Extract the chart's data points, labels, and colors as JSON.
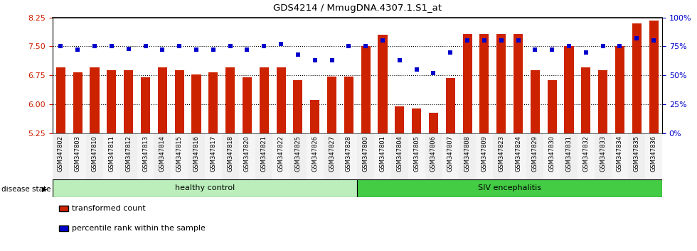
{
  "title": "GDS4214 / MmugDNA.4307.1.S1_at",
  "samples": [
    "GSM347802",
    "GSM347803",
    "GSM347810",
    "GSM347811",
    "GSM347812",
    "GSM347813",
    "GSM347814",
    "GSM347815",
    "GSM347816",
    "GSM347817",
    "GSM347818",
    "GSM347820",
    "GSM347821",
    "GSM347822",
    "GSM347825",
    "GSM347826",
    "GSM347827",
    "GSM347828",
    "GSM347800",
    "GSM347801",
    "GSM347804",
    "GSM347805",
    "GSM347806",
    "GSM347807",
    "GSM347808",
    "GSM347809",
    "GSM347823",
    "GSM347824",
    "GSM347829",
    "GSM347830",
    "GSM347831",
    "GSM347832",
    "GSM347833",
    "GSM347834",
    "GSM347835",
    "GSM347836"
  ],
  "bar_values": [
    6.95,
    6.82,
    6.95,
    6.88,
    6.88,
    6.7,
    6.95,
    6.88,
    6.78,
    6.82,
    6.95,
    6.7,
    6.95,
    6.95,
    6.62,
    6.1,
    6.72,
    6.72,
    7.5,
    7.8,
    5.95,
    5.88,
    5.78,
    6.68,
    7.82,
    7.82,
    7.82,
    7.82,
    6.88,
    6.62,
    7.5,
    6.95,
    6.88,
    7.5,
    8.1,
    8.18
  ],
  "percentile_values": [
    75,
    72,
    75,
    75,
    73,
    75,
    72,
    75,
    72,
    72,
    75,
    72,
    75,
    77,
    68,
    63,
    63,
    75,
    75,
    80,
    63,
    55,
    52,
    70,
    80,
    80,
    80,
    80,
    72,
    72,
    75,
    70,
    75,
    75,
    82,
    80
  ],
  "healthy_count": 18,
  "ylim_left": [
    5.25,
    8.25
  ],
  "ylim_right": [
    0,
    100
  ],
  "yticks_left": [
    5.25,
    6.0,
    6.75,
    7.5,
    8.25
  ],
  "yticks_right": [
    0,
    25,
    50,
    75,
    100
  ],
  "bar_color": "#cc2200",
  "percentile_color": "#0000cc",
  "healthy_color": "#bbeebb",
  "siv_color": "#44cc44",
  "healthy_label": "healthy control",
  "siv_label": "SIV encephalitis",
  "disease_state_label": "disease state",
  "legend_bar_label": "transformed count",
  "legend_pct_label": "percentile rank within the sample"
}
